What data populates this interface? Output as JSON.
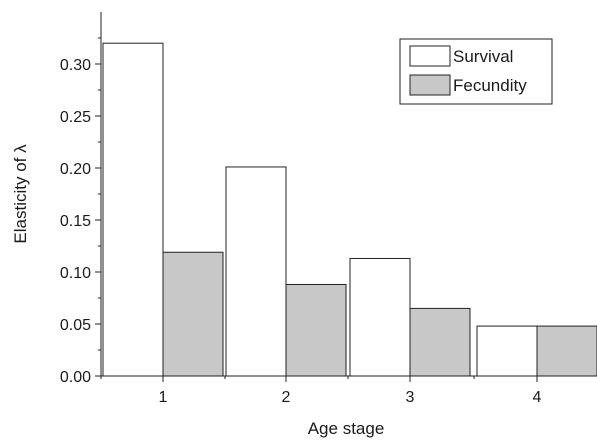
{
  "chart_data": {
    "type": "bar",
    "categories": [
      "1",
      "2",
      "3",
      "4"
    ],
    "series": [
      {
        "name": "Survival",
        "values": [
          0.32,
          0.201,
          0.113,
          0.048
        ],
        "color": "#ffffff"
      },
      {
        "name": "Fecundity",
        "values": [
          0.119,
          0.088,
          0.065,
          0.048
        ],
        "color": "#c8c8c8"
      }
    ],
    "xlabel": "Age stage",
    "ylabel": "Elasticity of λ",
    "ylim": [
      0,
      0.35
    ],
    "yticks": [
      "0.00",
      "0.05",
      "0.10",
      "0.15",
      "0.20",
      "0.25",
      "0.30"
    ],
    "grid": false,
    "legend": "top-right"
  }
}
